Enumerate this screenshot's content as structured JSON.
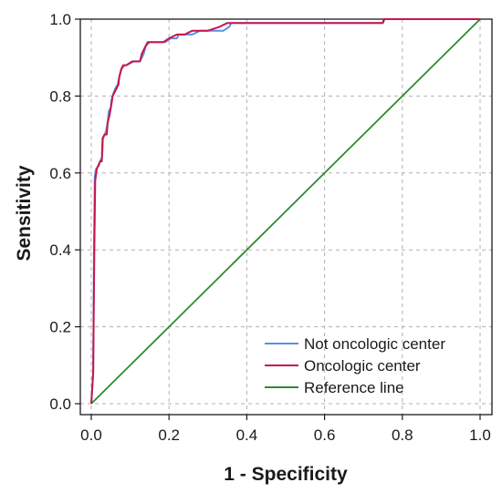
{
  "chart_data": {
    "type": "line",
    "title": "",
    "xlabel": "1 - Specificity",
    "ylabel": "Sensitivity",
    "xlim": [
      0,
      1
    ],
    "ylim": [
      0,
      1
    ],
    "x_ticks": [
      0.0,
      0.2,
      0.4,
      0.6,
      0.8,
      1.0
    ],
    "y_ticks": [
      0.0,
      0.2,
      0.4,
      0.6,
      0.8,
      1.0
    ],
    "x_tick_labels": [
      "0.0",
      "0.2",
      "0.4",
      "0.6",
      "0.8",
      "1.0"
    ],
    "y_tick_labels": [
      "0.0",
      "0.2",
      "0.4",
      "0.6",
      "0.8",
      "1.0"
    ],
    "grid": true,
    "legend_position": "bottom-right",
    "series": [
      {
        "name": "Not oncologic center",
        "color": "#5b8fe6",
        "points": [
          [
            0,
            0
          ],
          [
            0.005,
            0.08
          ],
          [
            0.007,
            0.41
          ],
          [
            0.009,
            0.59
          ],
          [
            0.012,
            0.61
          ],
          [
            0.02,
            0.62
          ],
          [
            0.022,
            0.63
          ],
          [
            0.028,
            0.64
          ],
          [
            0.03,
            0.69
          ],
          [
            0.035,
            0.7
          ],
          [
            0.038,
            0.71
          ],
          [
            0.042,
            0.73
          ],
          [
            0.045,
            0.76
          ],
          [
            0.05,
            0.77
          ],
          [
            0.052,
            0.79
          ],
          [
            0.058,
            0.81
          ],
          [
            0.062,
            0.82
          ],
          [
            0.068,
            0.83
          ],
          [
            0.07,
            0.84
          ],
          [
            0.075,
            0.86
          ],
          [
            0.078,
            0.87
          ],
          [
            0.085,
            0.88
          ],
          [
            0.09,
            0.88
          ],
          [
            0.11,
            0.89
          ],
          [
            0.125,
            0.89
          ],
          [
            0.13,
            0.9
          ],
          [
            0.135,
            0.91
          ],
          [
            0.14,
            0.93
          ],
          [
            0.15,
            0.94
          ],
          [
            0.19,
            0.94
          ],
          [
            0.205,
            0.95
          ],
          [
            0.22,
            0.95
          ],
          [
            0.225,
            0.96
          ],
          [
            0.26,
            0.96
          ],
          [
            0.28,
            0.97
          ],
          [
            0.34,
            0.97
          ],
          [
            0.355,
            0.98
          ],
          [
            0.36,
            0.99
          ],
          [
            0.75,
            0.99
          ],
          [
            0.755,
            1.0
          ],
          [
            1.0,
            1.0
          ]
        ]
      },
      {
        "name": "Oncologic center",
        "color": "#c8164a",
        "points": [
          [
            0,
            0
          ],
          [
            0.005,
            0.08
          ],
          [
            0.008,
            0.41
          ],
          [
            0.01,
            0.58
          ],
          [
            0.014,
            0.61
          ],
          [
            0.018,
            0.62
          ],
          [
            0.023,
            0.63
          ],
          [
            0.027,
            0.63
          ],
          [
            0.029,
            0.69
          ],
          [
            0.034,
            0.7
          ],
          [
            0.04,
            0.7
          ],
          [
            0.042,
            0.73
          ],
          [
            0.047,
            0.75
          ],
          [
            0.052,
            0.78
          ],
          [
            0.055,
            0.8
          ],
          [
            0.06,
            0.81
          ],
          [
            0.065,
            0.82
          ],
          [
            0.07,
            0.83
          ],
          [
            0.072,
            0.85
          ],
          [
            0.077,
            0.87
          ],
          [
            0.082,
            0.88
          ],
          [
            0.09,
            0.88
          ],
          [
            0.105,
            0.89
          ],
          [
            0.125,
            0.89
          ],
          [
            0.13,
            0.91
          ],
          [
            0.14,
            0.93
          ],
          [
            0.145,
            0.94
          ],
          [
            0.185,
            0.94
          ],
          [
            0.2,
            0.95
          ],
          [
            0.22,
            0.96
          ],
          [
            0.24,
            0.96
          ],
          [
            0.26,
            0.97
          ],
          [
            0.3,
            0.97
          ],
          [
            0.33,
            0.98
          ],
          [
            0.35,
            0.99
          ],
          [
            0.75,
            0.99
          ],
          [
            0.752,
            1.0
          ],
          [
            1.0,
            1.0
          ]
        ]
      },
      {
        "name": "Reference line",
        "color": "#2e8b2e",
        "points": [
          [
            0,
            0
          ],
          [
            1,
            1
          ]
        ]
      }
    ]
  }
}
